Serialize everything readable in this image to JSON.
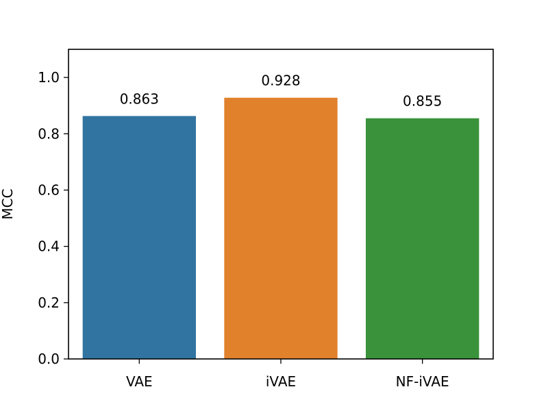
{
  "chart_data": {
    "type": "bar",
    "categories": [
      "VAE",
      "iVAE",
      "NF-iVAE"
    ],
    "values": [
      0.863,
      0.928,
      0.855
    ],
    "data_labels": [
      "0.863",
      "0.928",
      "0.855"
    ],
    "colors": [
      "#3274a1",
      "#e1812c",
      "#3a923a"
    ],
    "title": "",
    "xlabel": "",
    "ylabel": "MCC",
    "ylim": [
      0,
      1.1
    ],
    "yticks": [
      0.0,
      0.2,
      0.4,
      0.6,
      0.8,
      1.0
    ],
    "ytick_labels": [
      "0.0",
      "0.2",
      "0.4",
      "0.6",
      "0.8",
      "1.0"
    ],
    "grid": false,
    "legend": false
  }
}
